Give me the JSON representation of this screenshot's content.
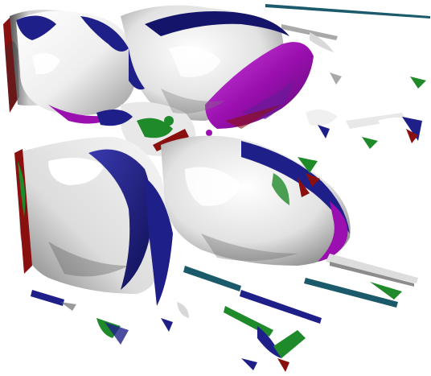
{
  "scene": {
    "kind": "3d-volume-rendering",
    "background": "#ffffff",
    "palette": {
      "surface_light": "#f4f4f4",
      "surface_mid": "#c8c8c8",
      "surface_shadow": "#6f6f6f",
      "blue": "#1f1f8a",
      "navy": "#14146a",
      "magenta": "#9b0fb0",
      "purple": "#6a1a9a",
      "green": "#1f8a2a",
      "red": "#8a1010",
      "teal": "#1b5a6a"
    }
  }
}
